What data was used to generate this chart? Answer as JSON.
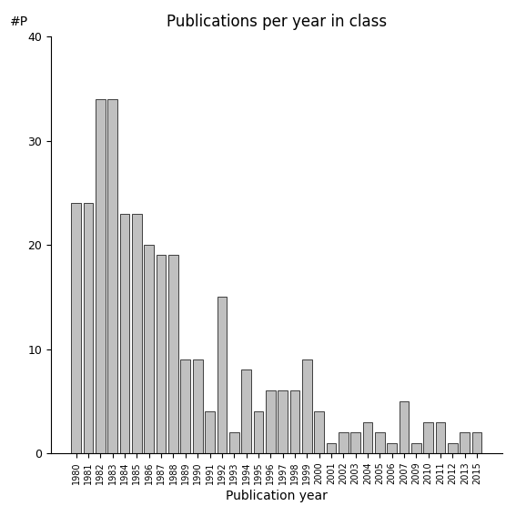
{
  "title": "Publications per year in class",
  "xlabel": "Publication year",
  "ylabel": "#P",
  "categories": [
    "1980",
    "1981",
    "1982",
    "1983",
    "1984",
    "1985",
    "1986",
    "1987",
    "1988",
    "1989",
    "1990",
    "1991",
    "1992",
    "1993",
    "1994",
    "1995",
    "1996",
    "1997",
    "1998",
    "1999",
    "2000",
    "2001",
    "2002",
    "2003",
    "2004",
    "2005",
    "2006",
    "2007",
    "2009",
    "2010",
    "2011",
    "2012",
    "2013",
    "2015"
  ],
  "values": [
    24,
    24,
    34,
    34,
    23,
    23,
    20,
    19,
    19,
    9,
    9,
    4,
    15,
    2,
    8,
    4,
    6,
    6,
    6,
    9,
    4,
    1,
    2,
    2,
    3,
    2,
    1,
    5,
    1,
    3,
    3,
    1,
    2,
    2
  ],
  "bar_color": "#c0c0c0",
  "bar_edge_color": "#000000",
  "ylim": [
    0,
    40
  ],
  "yticks": [
    0,
    10,
    20,
    30,
    40
  ],
  "figsize": [
    5.67,
    5.67
  ],
  "dpi": 100,
  "title_fontsize": 12,
  "label_fontsize": 10
}
